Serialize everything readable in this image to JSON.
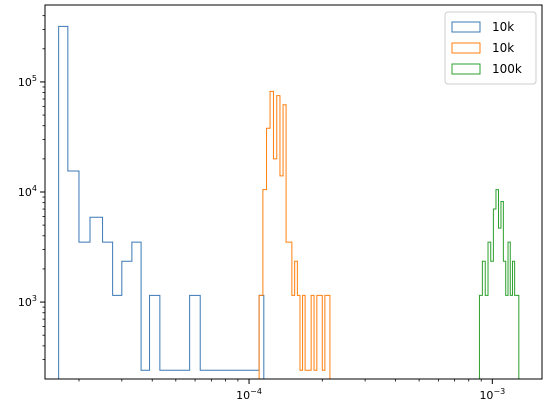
{
  "chart_data": {
    "type": "histogram",
    "scale": {
      "x": "log",
      "y": "log"
    },
    "xlim": [
      1.45e-05,
      0.0016
    ],
    "ylim": [
      200,
      500000
    ],
    "x_ticks": [
      {
        "value": 0.0001,
        "base": "10",
        "exp": "−4"
      },
      {
        "value": 0.001,
        "base": "10",
        "exp": "−3"
      }
    ],
    "y_ticks": [
      {
        "value": 1000,
        "base": "10",
        "exp": "3"
      },
      {
        "value": 10000,
        "base": "10",
        "exp": "4"
      },
      {
        "value": 100000,
        "base": "10",
        "exp": "5"
      }
    ],
    "grid": false,
    "legend": {
      "position": "top-right",
      "entries": [
        {
          "label": "10k",
          "color": "#3a78b6"
        },
        {
          "label": "10k",
          "color": "#ff7f0e"
        },
        {
          "label": "100k",
          "color": "#2ca02c"
        }
      ]
    },
    "series": [
      {
        "label": "10k",
        "color": "#3a78b6",
        "edges": [
          1.65e-05,
          1.8e-05,
          2e-05,
          2.22e-05,
          2.5e-05,
          2.75e-05,
          3e-05,
          3.3e-05,
          3.6e-05,
          3.9e-05,
          4.3e-05,
          4.7e-05,
          5.2e-05,
          5.7e-05,
          6.3e-05,
          6.9e-05,
          7.6e-05,
          8.3e-05,
          9.2e-05,
          0.000101,
          0.00011,
          0.000115
        ],
        "counts": [
          320000,
          15500,
          3500,
          5900,
          3500,
          1150,
          2350,
          3500,
          240,
          1150,
          240,
          240,
          240,
          1150,
          240,
          240,
          240,
          240,
          240,
          240,
          1150
        ]
      },
      {
        "label": "10k",
        "color": "#ff7f0e",
        "edges": [
          0.00011,
          0.000114,
          0.000118,
          0.000122,
          0.000126,
          0.00013,
          0.000134,
          0.000138,
          0.000142,
          0.000146,
          0.00015,
          0.000154,
          0.000158,
          0.000162,
          0.000166,
          0.00017,
          0.000175,
          0.00018,
          0.000185,
          0.00019,
          0.000195,
          0.0002,
          0.000205,
          0.00021,
          0.000215
        ],
        "counts": [
          1150,
          10500,
          38000,
          82000,
          20000,
          75000,
          14000,
          62000,
          3500,
          3500,
          1150,
          2350,
          1150,
          240,
          1150,
          240,
          240,
          1150,
          240,
          1150,
          1150,
          240,
          1150,
          1150
        ]
      },
      {
        "label": "100k",
        "color": "#2ca02c",
        "edges": [
          0.000885,
          0.00091,
          0.000935,
          0.00096,
          0.000985,
          0.00101,
          0.001035,
          0.00106,
          0.001085,
          0.00111,
          0.001135,
          0.00116,
          0.001185,
          0.00121,
          0.001235,
          0.00126,
          0.001285
        ],
        "counts": [
          1150,
          2350,
          1150,
          3500,
          2350,
          7000,
          10500,
          4700,
          8200,
          2350,
          1150,
          3500,
          1150,
          2350,
          1150,
          1150
        ]
      }
    ]
  }
}
